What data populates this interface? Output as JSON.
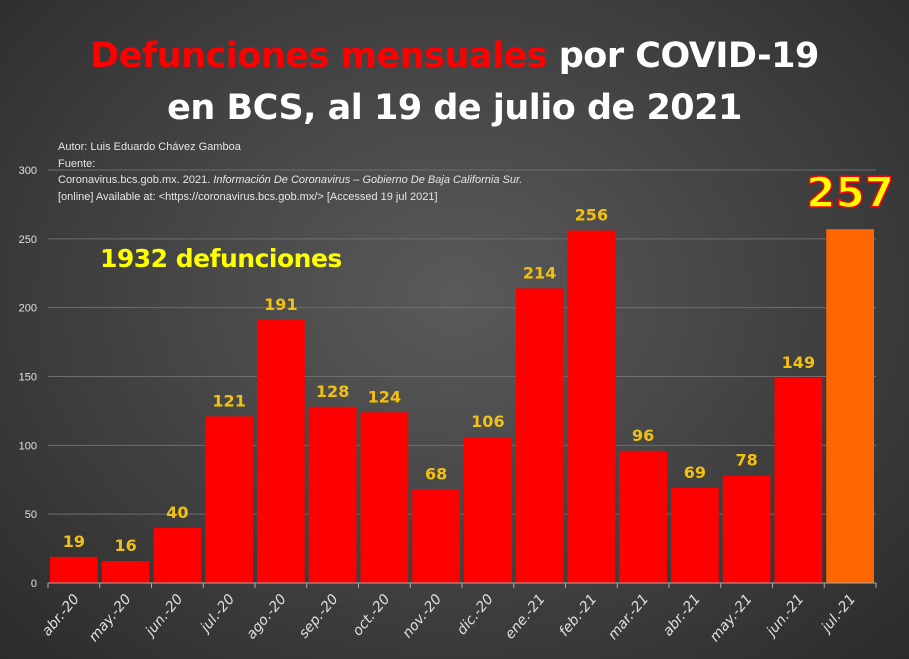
{
  "title": {
    "highlight": "Defunciones mensuales",
    "rest_line1": " por COVID-19",
    "line2": "en BCS, al 19 de julio de 2021"
  },
  "source": {
    "author": "Autor: Luis Eduardo Chávez Gamboa",
    "label": "Fuente:",
    "citation_plain": "Coronavirus.bcs.gob.mx. 2021. ",
    "citation_italic": "Información De Coronavirus – Gobierno De Baja California Sur.",
    "online": "[online] Available at: <https://coronavirus.bcs.gob.mx/> [Accessed 19   jul 2021]"
  },
  "total_annotation": "1932 defunciones",
  "colors": {
    "bar": "#ff0000",
    "highlight_bar": "#ff6600",
    "data_label": "#f2c010",
    "highlight_label": "#ffff00"
  },
  "chart_data": {
    "type": "bar",
    "title": "Defunciones mensuales por COVID-19 en BCS, al 19 de julio de 2021",
    "xlabel": "",
    "ylabel": "",
    "categories": [
      "abr.-20",
      "may.-20",
      "jun.-20",
      "jul.-20",
      "ago.-20",
      "sep.-20",
      "oct.-20",
      "nov.-20",
      "dic.-20",
      "ene.-21",
      "feb.-21",
      "mar.-21",
      "abr.-21",
      "may.-21",
      "jun.-21",
      "jul.-21"
    ],
    "values": [
      19,
      16,
      40,
      121,
      191,
      128,
      124,
      68,
      106,
      214,
      256,
      96,
      69,
      78,
      149,
      257
    ],
    "highlight_index": 15,
    "ylim": [
      0,
      300
    ],
    "yticks": [
      0,
      50,
      100,
      150,
      200,
      250,
      300
    ],
    "grid": true,
    "legend": "none"
  }
}
